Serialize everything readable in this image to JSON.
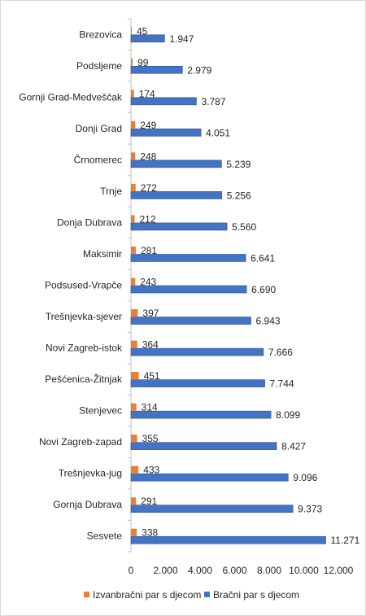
{
  "chart_data": {
    "type": "bar",
    "orientation": "horizontal",
    "categories": [
      "Brezovica",
      "Podsljeme",
      "Gornji Grad-Medveščak",
      "Donji Grad",
      "Črnomerec",
      "Trnje",
      "Donja Dubrava",
      "Maksimir",
      "Podsused-Vrapče",
      "Trešnjevka-sjever",
      "Novi Zagreb-istok",
      "Pešćenica-Žitnjak",
      "Stenjevec",
      "Novi Zagreb-zapad",
      "Trešnjevka-jug",
      "Gornja Dubrava",
      "Sesvete"
    ],
    "series": [
      {
        "name": "Izvanbračni par s djecom",
        "color": "#ED7D31",
        "values": [
          45,
          99,
          174,
          249,
          248,
          272,
          212,
          281,
          243,
          397,
          364,
          451,
          314,
          355,
          433,
          291,
          338
        ],
        "labels": [
          "45",
          "99",
          "174",
          "249",
          "248",
          "272",
          "212",
          "281",
          "243",
          "397",
          "364",
          "451",
          "314",
          "355",
          "433",
          "291",
          "338"
        ]
      },
      {
        "name": "Bračni par s djecom",
        "color": "#4472C4",
        "values": [
          1947,
          2979,
          3787,
          4051,
          5239,
          5256,
          5560,
          6641,
          6690,
          6943,
          7666,
          7744,
          8099,
          8427,
          9096,
          9373,
          11271
        ],
        "labels": [
          "1.947",
          "2.979",
          "3.787",
          "4.051",
          "5.239",
          "5.256",
          "5.560",
          "6.641",
          "6.690",
          "6.943",
          "7.666",
          "7.744",
          "8.099",
          "8.427",
          "9.096",
          "9.373",
          "11.271"
        ]
      }
    ],
    "xlim": [
      0,
      12000
    ],
    "x_ticks": [
      "0",
      "2.000",
      "4.000",
      "6.000",
      "8.000",
      "10.000",
      "12.000"
    ],
    "grid": false,
    "legend": "bottom"
  }
}
